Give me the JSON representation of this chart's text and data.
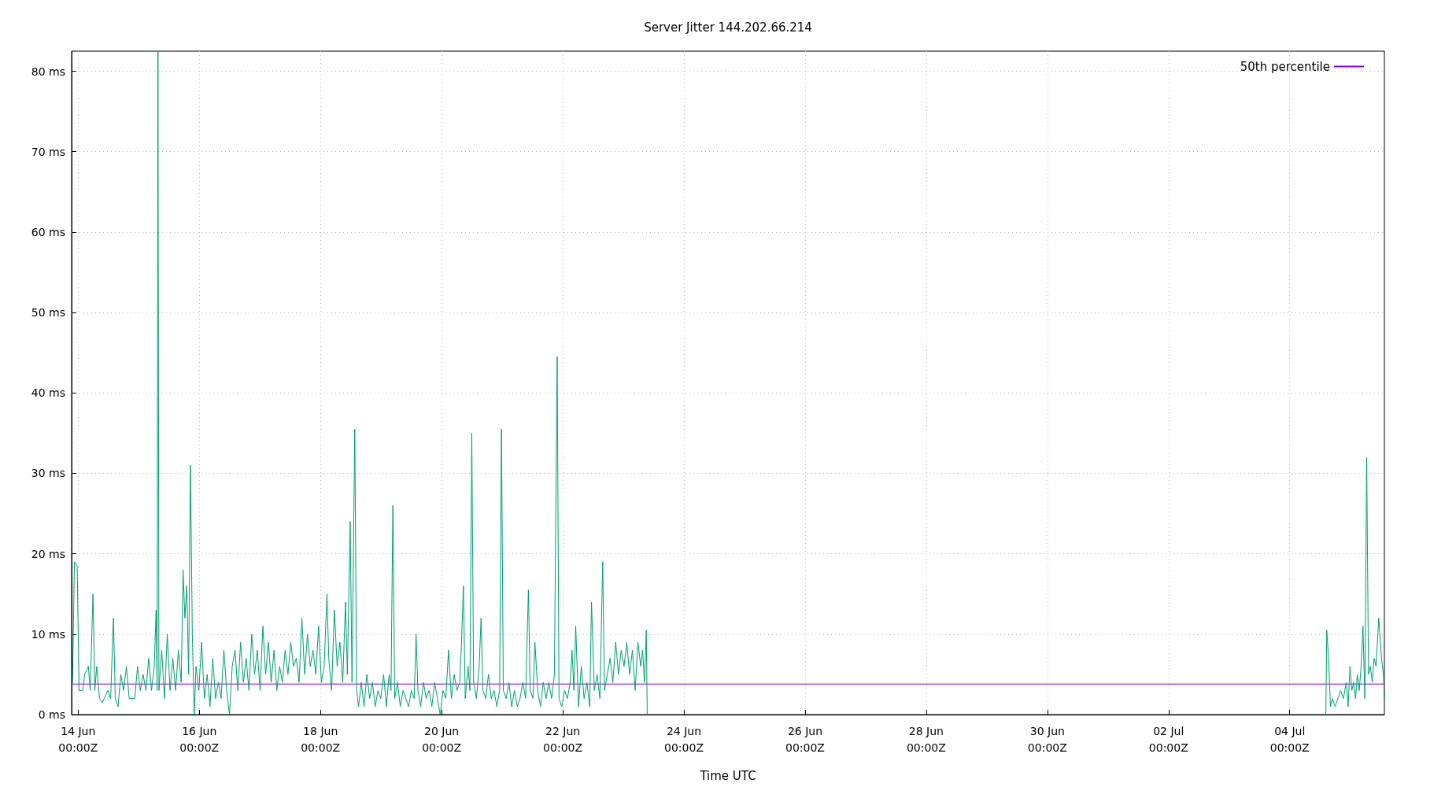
{
  "chart_data": {
    "type": "line",
    "title": "Server Jitter 144.202.66.214",
    "xlabel": "Time UTC",
    "xlim": [
      "--06-13T21:25",
      "--07-05T13:30"
    ],
    "xticks": [
      {
        "value": "--06-14",
        "label": "14 Jun\n00:00Z"
      },
      {
        "value": "--06-16",
        "label": "16 Jun\n00:00Z"
      },
      {
        "value": "--06-18",
        "label": "18 Jun\n00:00Z"
      },
      {
        "value": "--06-20",
        "label": "20 Jun\n00:00Z"
      },
      {
        "value": "--06-22",
        "label": "22 Jun\n00:00Z"
      },
      {
        "value": "--06-24",
        "label": "24 Jun\n00:00Z"
      },
      {
        "value": "--06-26",
        "label": "26 Jun\n00:00Z"
      },
      {
        "value": "--06-28",
        "label": "28 Jun\n00:00Z"
      },
      {
        "value": "--06-30",
        "label": "30 Jun\n00:00Z"
      },
      {
        "value": "--07-02",
        "label": "02 Jul\n00:00Z"
      },
      {
        "value": "--07-04",
        "label": "04 Jul\n00:00Z"
      }
    ],
    "ylim": [
      0,
      82.5
    ],
    "yticks": [
      {
        "value": 0,
        "label": "0 ms"
      },
      {
        "value": 10,
        "label": "10 ms"
      },
      {
        "value": 20,
        "label": "20 ms"
      },
      {
        "value": 30,
        "label": "30 ms"
      },
      {
        "value": 40,
        "label": "40 ms"
      },
      {
        "value": 50,
        "label": "50 ms"
      },
      {
        "value": 60,
        "label": "60 ms"
      },
      {
        "value": 70,
        "label": "70 ms"
      },
      {
        "value": 80,
        "label": "80 ms"
      }
    ],
    "grid": true,
    "legend": "top right",
    "marker": "none",
    "line_style": "solid",
    "x": [
      "--06-13T21:47",
      "--06-13T22:32",
      "--06-13T23:38",
      "--06-14T00:22",
      "--06-14T01:50",
      "--06-14T02:34",
      "--06-14T04:03",
      "--06-14T04:47",
      "--06-14T05:53",
      "--06-14T06:37",
      "--06-14T07:21",
      "--06-14T08:28",
      "--06-14T09:34",
      "--06-14T11:46",
      "--06-14T12:52",
      "--06-14T13:59",
      "--06-14T14:43",
      "--06-14T15:49",
      "--06-14T16:55",
      "--06-14T18:01",
      "--06-14T19:08",
      "--06-14T20:14",
      "--06-14T22:26",
      "--06-14T23:32",
      "--06-15T00:38",
      "--06-15T01:45",
      "--06-15T02:51",
      "--06-15T03:57",
      "--06-15T05:04",
      "--06-15T06:10",
      "--06-15T06:54",
      "--06-15T07:16",
      "--06-15T07:38",
      "--06-15T08:00",
      "--06-15T09:06",
      "--06-15T10:13",
      "--06-15T11:19",
      "--06-15T12:25",
      "--06-15T13:31",
      "--06-15T14:37",
      "--06-15T15:43",
      "--06-15T16:50",
      "--06-15T17:34",
      "--06-15T18:18",
      "--06-15T19:02",
      "--06-15T19:46",
      "--06-15T20:30",
      "--06-15T21:14",
      "--06-15T21:59",
      "--06-15T22:43",
      "--06-15T23:49",
      "--06-16T00:55",
      "--06-16T02:01",
      "--06-16T03:07",
      "--06-16T04:14",
      "--06-16T05:20",
      "--06-16T06:26",
      "--06-16T07:32",
      "--06-16T08:38",
      "--06-16T09:44",
      "--06-16T10:51",
      "--06-16T11:57",
      "--06-16T13:03",
      "--06-16T14:10",
      "--06-16T15:16",
      "--06-16T16:22",
      "--06-16T17:28",
      "--06-16T18:34",
      "--06-16T19:40",
      "--06-16T20:47",
      "--06-16T21:53",
      "--06-16T22:59",
      "--06-17T00:05",
      "--06-17T01:11",
      "--06-17T02:17",
      "--06-17T03:24",
      "--06-17T04:30",
      "--06-17T05:36",
      "--06-17T06:43",
      "--06-17T07:49",
      "--06-17T08:55",
      "--06-17T10:01",
      "--06-17T11:07",
      "--06-17T12:14",
      "--06-17T13:20",
      "--06-17T14:26",
      "--06-17T15:32",
      "--06-17T16:38",
      "--06-17T17:44",
      "--06-17T18:51",
      "--06-17T19:57",
      "--06-17T21:03",
      "--06-17T22:10",
      "--06-17T23:16",
      "--06-18T00:22",
      "--06-18T01:28",
      "--06-18T02:34",
      "--06-18T03:18",
      "--06-18T04:25",
      "--06-18T05:31",
      "--06-18T06:37",
      "--06-18T07:43",
      "--06-18T08:49",
      "--06-18T09:56",
      "--06-18T10:40",
      "--06-18T11:46",
      "--06-18T12:30",
      "--06-18T13:36",
      "--06-18T14:20",
      "--06-18T15:05",
      "--06-18T16:11",
      "--06-18T17:17",
      "--06-18T18:23",
      "--06-18T19:29",
      "--06-18T20:35",
      "--06-18T21:42",
      "--06-18T22:48",
      "--06-18T23:54",
      "--06-19T01:01",
      "--06-19T02:07",
      "--06-19T03:13",
      "--06-19T03:57",
      "--06-19T04:41",
      "--06-19T05:25",
      "--06-19T06:31",
      "--06-19T07:38",
      "--06-19T08:44",
      "--06-19T09:50",
      "--06-19T10:56",
      "--06-19T12:02",
      "--06-19T13:08",
      "--06-19T13:53",
      "--06-19T14:37",
      "--06-19T15:43",
      "--06-19T16:49",
      "--06-19T17:55",
      "--06-19T19:02",
      "--06-19T20:08",
      "--06-19T21:14",
      "--06-19T22:20",
      "--06-19T23:26",
      "--06-20T00:33",
      "--06-20T01:39",
      "--06-20T02:45",
      "--06-20T03:52",
      "--06-20T04:58",
      "--06-20T06:04",
      "--06-20T07:10",
      "--06-20T07:54",
      "--06-20T08:38",
      "--06-20T09:22",
      "--06-20T10:29",
      "--06-20T11:13",
      "--06-20T11:57",
      "--06-20T12:41",
      "--06-20T13:47",
      "--06-20T14:53",
      "--06-20T15:38",
      "--06-20T16:22",
      "--06-20T17:28",
      "--06-20T18:34",
      "--06-20T19:40",
      "--06-20T20:46",
      "--06-20T21:53",
      "--06-20T22:59",
      "--06-20T23:43",
      "--06-21T00:27",
      "--06-21T01:34",
      "--06-21T02:40",
      "--06-21T03:46",
      "--06-21T04:52",
      "--06-21T05:58",
      "--06-21T07:04",
      "--06-21T08:11",
      "--06-21T09:17",
      "--06-21T10:23",
      "--06-21T11:07",
      "--06-21T12:13",
      "--06-21T12:58",
      "--06-21T14:04",
      "--06-21T15:10",
      "--06-21T16:16",
      "--06-21T17:22",
      "--06-21T18:28",
      "--06-21T19:35",
      "--06-21T20:41",
      "--06-21T21:47",
      "--06-21T22:31",
      "--06-21T23:37",
      "--06-22T00:44",
      "--06-22T01:50",
      "--06-22T02:56",
      "--06-22T03:40",
      "--06-22T04:25",
      "--06-22T05:08",
      "--06-22T06:14",
      "--06-22T07:21",
      "--06-22T08:27",
      "--06-22T09:33",
      "--06-22T10:40",
      "--06-22T11:23",
      "--06-22T12:30",
      "--06-22T13:36",
      "--06-22T14:42",
      "--06-22T15:49",
      "--06-22T16:32",
      "--06-22T17:39",
      "--06-22T18:45",
      "--06-22T19:51",
      "--06-22T20:58",
      "--06-22T22:04",
      "--06-22T23:10",
      "--06-23T00:16",
      "--06-23T01:22",
      "--06-23T02:28",
      "--06-23T03:35",
      "--06-23T04:41",
      "--06-23T05:47",
      "--06-23T06:53",
      "--06-23T07:37",
      "--06-23T08:22",
      "--06-23T09:05",
      "--06-23T09:28",
      "--06-28T00:00",
      "--07-04T14:18",
      "--07-04T14:40",
      "--07-04T15:24",
      "--07-04T16:08",
      "--07-04T16:52",
      "--07-04T17:59",
      "--07-04T19:05",
      "--07-04T20:11",
      "--07-04T21:17",
      "--07-04T22:23",
      "--07-04T23:08",
      "--07-04T23:52",
      "--07-05T00:36",
      "--07-05T01:20",
      "--07-05T02:04",
      "--07-05T02:48",
      "--07-05T03:32",
      "--07-05T04:17",
      "--07-05T05:01",
      "--07-05T05:45",
      "--07-05T06:29",
      "--07-05T07:13",
      "--07-05T07:57",
      "--07-05T08:41",
      "--07-05T09:25",
      "--07-05T10:10",
      "--07-05T11:16",
      "--07-05T12:22",
      "--07-05T13:06",
      "--07-05T13:28"
    ],
    "series": [
      {
        "name": "50th percentile",
        "color": "#9400d3",
        "x": [
          "--06-13T21:25",
          "--07-05T13:30"
        ],
        "values": [
          3.8,
          3.8
        ]
      },
      {
        "color": "#009e73",
        "values": [
          4,
          19,
          18.5,
          3,
          3,
          5,
          6,
          3,
          15,
          3,
          6,
          2,
          1.5,
          3,
          2,
          12,
          2,
          1,
          5,
          3,
          6,
          2,
          2,
          6,
          3,
          5,
          3,
          7,
          3,
          6,
          13,
          3,
          82.5,
          3,
          8,
          2,
          10,
          3,
          7,
          3,
          8,
          4,
          18,
          12,
          16,
          5,
          31,
          10,
          0,
          6,
          3,
          9,
          2,
          5,
          1,
          7,
          2,
          4,
          2,
          8,
          3,
          0,
          6,
          8,
          3,
          9,
          4,
          7,
          3,
          10,
          5,
          8,
          3,
          11,
          5,
          9,
          4,
          8,
          3,
          6,
          4,
          8,
          5,
          9,
          6,
          7,
          4,
          12,
          5,
          10,
          6,
          8,
          5,
          11,
          4,
          6,
          15,
          7,
          3,
          13,
          6,
          9,
          4,
          14,
          5,
          24,
          4,
          35.5,
          3,
          1,
          4,
          1,
          5,
          2,
          4,
          1,
          3,
          2,
          5,
          1,
          5,
          3,
          26,
          2,
          4,
          1,
          3,
          2,
          1,
          3,
          2,
          10,
          3,
          1,
          4,
          2,
          3,
          1,
          4,
          2,
          0,
          3,
          2,
          8,
          2,
          5,
          3,
          4,
          9,
          16,
          2,
          6,
          3,
          35,
          4,
          2,
          6,
          12,
          3,
          2,
          5,
          2,
          3,
          1,
          3,
          35.5,
          3,
          2,
          4,
          1,
          3,
          1,
          2,
          4,
          2,
          15.5,
          3,
          2,
          9,
          3,
          1,
          4,
          2,
          4,
          2,
          5,
          44.5,
          2,
          1,
          3,
          2,
          4,
          8,
          3,
          11,
          1,
          6,
          2,
          4,
          1,
          14,
          3,
          5,
          2,
          19,
          3,
          5,
          7,
          4,
          9,
          5,
          8,
          6,
          9,
          5,
          8,
          3,
          9,
          6,
          8,
          4,
          10.5,
          0,
          null,
          0,
          10.5,
          7,
          1,
          2,
          1,
          2,
          3,
          2,
          4,
          1,
          6,
          3,
          4,
          2,
          5,
          3,
          6,
          11,
          2,
          32,
          5,
          6,
          4,
          7,
          6,
          12,
          7,
          5,
          2
        ]
      }
    ]
  }
}
